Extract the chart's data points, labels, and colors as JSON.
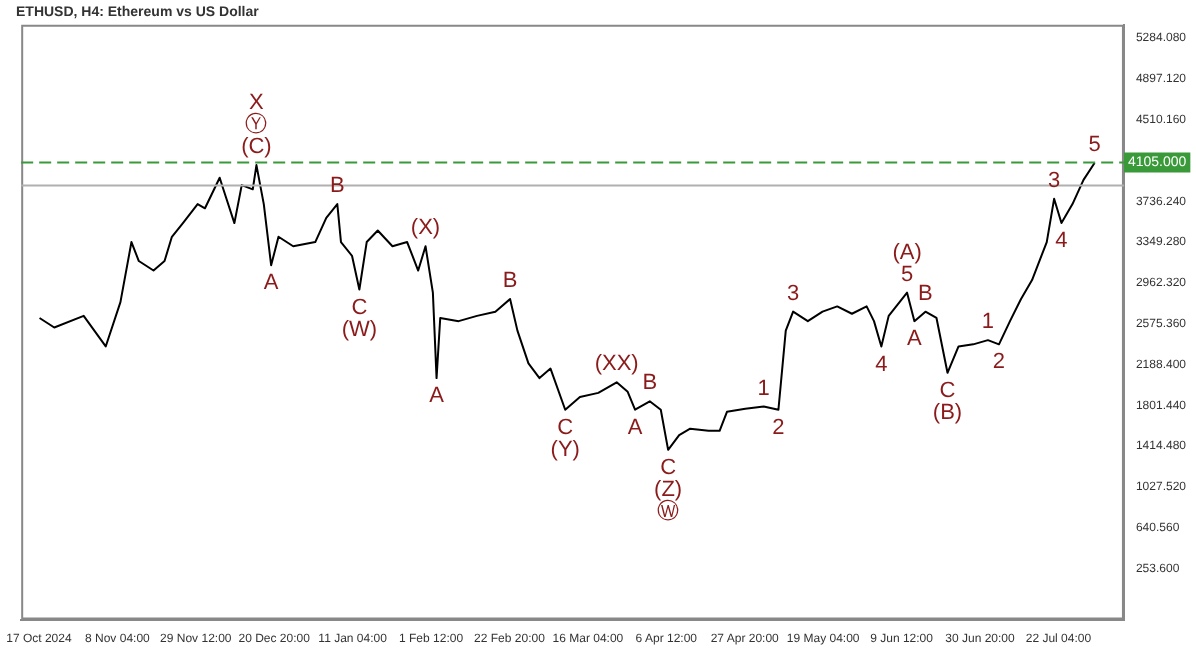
{
  "chart_data": {
    "type": "line",
    "title": "ETHUSD, H4: Ethereum vs US Dollar",
    "x": [
      "2024-10-18",
      "2024-10-22",
      "2024-10-30",
      "2024-11-05",
      "2024-11-09",
      "2024-11-12",
      "2024-11-14",
      "2024-11-18",
      "2024-11-21",
      "2024-11-23",
      "2024-11-26",
      "2024-11-30",
      "2024-12-02",
      "2024-12-06",
      "2024-12-07",
      "2024-12-10",
      "2024-12-12",
      "2024-12-15",
      "2024-12-16",
      "2024-12-18",
      "2024-12-20",
      "2024-12-22",
      "2024-12-26",
      "2025-01-01",
      "2025-01-04",
      "2025-01-07",
      "2025-01-08",
      "2025-01-11",
      "2025-01-13",
      "2025-01-15",
      "2025-01-18",
      "2025-01-22",
      "2025-01-26",
      "2025-01-29",
      "2025-01-31",
      "2025-02-02",
      "2025-02-03",
      "2025-02-04",
      "2025-02-09",
      "2025-02-14",
      "2025-02-19",
      "2025-02-23",
      "2025-02-25",
      "2025-02-28",
      "2025-03-03",
      "2025-03-06",
      "2025-03-10",
      "2025-03-14",
      "2025-03-19",
      "2025-03-24",
      "2025-03-27",
      "2025-03-29",
      "2025-04-02",
      "2025-04-05",
      "2025-04-07",
      "2025-04-10",
      "2025-04-13",
      "2025-04-18",
      "2025-04-21",
      "2025-04-23",
      "2025-04-28",
      "2025-05-03",
      "2025-05-07",
      "2025-05-09",
      "2025-05-11",
      "2025-05-15",
      "2025-05-19",
      "2025-05-23",
      "2025-05-27",
      "2025-05-31",
      "2025-06-02",
      "2025-06-04",
      "2025-06-06",
      "2025-06-11",
      "2025-06-13",
      "2025-06-16",
      "2025-06-19",
      "2025-06-22",
      "2025-06-25",
      "2025-06-29",
      "2025-07-03",
      "2025-07-06",
      "2025-07-09",
      "2025-07-12",
      "2025-07-15",
      "2025-07-19",
      "2025-07-21",
      "2025-07-23",
      "2025-07-26",
      "2025-07-29",
      "2025-08-01"
    ],
    "series": [
      {
        "color": "#000000",
        "values": [
          2630,
          2540,
          2650,
          2360,
          2780,
          3350,
          3170,
          3080,
          3170,
          3400,
          3530,
          3710,
          3670,
          3960,
          3850,
          3530,
          3890,
          3850,
          4080,
          3710,
          3130,
          3400,
          3310,
          3350,
          3580,
          3710,
          3350,
          3220,
          2900,
          3350,
          3460,
          3310,
          3350,
          3080,
          3310,
          2870,
          2060,
          2630,
          2600,
          2650,
          2690,
          2810,
          2510,
          2200,
          2060,
          2150,
          1760,
          1880,
          1920,
          2020,
          1930,
          1760,
          1840,
          1760,
          1380,
          1520,
          1580,
          1560,
          1560,
          1740,
          1770,
          1790,
          1760,
          2510,
          2690,
          2600,
          2690,
          2740,
          2670,
          2740,
          2600,
          2360,
          2650,
          2870,
          2600,
          2690,
          2630,
          2110,
          2360,
          2380,
          2420,
          2380,
          2600,
          2810,
          2990,
          3350,
          3760,
          3530,
          3710,
          3940,
          4100
        ]
      }
    ],
    "xlim": [
      "2024-10-13",
      "2025-08-09"
    ],
    "xticks": [
      {
        "value": "2024-10-17T20:00",
        "label": "17 Oct 2024"
      },
      {
        "value": "2024-11-08T04:00",
        "label": "8 Nov 04:00"
      },
      {
        "value": "2024-11-29T12:00",
        "label": "29 Nov 12:00"
      },
      {
        "value": "2024-12-20T20:00",
        "label": "20 Dec 20:00"
      },
      {
        "value": "2025-01-11T04:00",
        "label": "11 Jan 04:00"
      },
      {
        "value": "2025-02-01T12:00",
        "label": "1 Feb 12:00"
      },
      {
        "value": "2025-02-22T20:00",
        "label": "22 Feb 20:00"
      },
      {
        "value": "2025-03-16T04:00",
        "label": "16 Mar 04:00"
      },
      {
        "value": "2025-04-06T12:00",
        "label": "6 Apr 12:00"
      },
      {
        "value": "2025-04-27T20:00",
        "label": "27 Apr 20:00"
      },
      {
        "value": "2025-05-19T04:00",
        "label": "19 May 04:00"
      },
      {
        "value": "2025-06-09T12:00",
        "label": "9 Jun 12:00"
      },
      {
        "value": "2025-06-30T20:00",
        "label": "30 Jun 20:00"
      },
      {
        "value": "2025-07-22T04:00",
        "label": "22 Jul 04:00"
      }
    ],
    "ylim": [
      -230,
      5410
    ],
    "yticks": [
      {
        "value": 253.6,
        "label": "253.600"
      },
      {
        "value": 640.56,
        "label": "640.560"
      },
      {
        "value": 1027.52,
        "label": "1027.520"
      },
      {
        "value": 1414.48,
        "label": "1414.480"
      },
      {
        "value": 1801.44,
        "label": "1801.440"
      },
      {
        "value": 2188.4,
        "label": "2188.400"
      },
      {
        "value": 2575.36,
        "label": "2575.360"
      },
      {
        "value": 2962.32,
        "label": "2962.320"
      },
      {
        "value": 3349.28,
        "label": "3349.280"
      },
      {
        "value": 3736.24,
        "label": "3736.240"
      },
      {
        "value": 4510.16,
        "label": "4510.160"
      },
      {
        "value": 4897.12,
        "label": "4897.120"
      },
      {
        "value": 5284.08,
        "label": "5284.080"
      }
    ],
    "ref_lines": [
      {
        "axis": "y",
        "value": 4105,
        "label": "4105.000",
        "color": "#3a9a3a",
        "line_style": "dashed"
      },
      {
        "axis": "y",
        "value": 3887,
        "color": "#b0b0b0",
        "line_style": "solid"
      }
    ],
    "annotations": [
      {
        "text": "(C)",
        "x": "2024-12-16",
        "y": 4080
      },
      {
        "text": "Ⓨ",
        "x": "2024-12-16",
        "y": 4080
      },
      {
        "text": "X",
        "x": "2024-12-16",
        "y": 4080
      },
      {
        "text": "A",
        "x": "2024-12-20",
        "y": 3130
      },
      {
        "text": "B",
        "x": "2025-01-07",
        "y": 3710
      },
      {
        "text": "C",
        "x": "2025-01-13",
        "y": 2900
      },
      {
        "text": "(W)",
        "x": "2025-01-13",
        "y": 2900
      },
      {
        "text": "(X)",
        "x": "2025-01-31",
        "y": 3310
      },
      {
        "text": "A",
        "x": "2025-02-03",
        "y": 2060
      },
      {
        "text": "B",
        "x": "2025-02-23",
        "y": 2810
      },
      {
        "text": "C",
        "x": "2025-03-10",
        "y": 1760
      },
      {
        "text": "(Y)",
        "x": "2025-03-10",
        "y": 1760
      },
      {
        "text": "(XX)",
        "x": "2025-03-24",
        "y": 2020
      },
      {
        "text": "A",
        "x": "2025-03-29",
        "y": 1760
      },
      {
        "text": "B",
        "x": "2025-04-02",
        "y": 1840
      },
      {
        "text": "C",
        "x": "2025-04-07",
        "y": 1380
      },
      {
        "text": "(Z)",
        "x": "2025-04-07",
        "y": 1380
      },
      {
        "text": "Ⓦ",
        "x": "2025-04-07",
        "y": 1380
      },
      {
        "text": "1",
        "x": "2025-05-03",
        "y": 1790
      },
      {
        "text": "2",
        "x": "2025-05-07",
        "y": 1760
      },
      {
        "text": "3",
        "x": "2025-05-11",
        "y": 2690
      },
      {
        "text": "4",
        "x": "2025-06-04",
        "y": 2360
      },
      {
        "text": "5",
        "x": "2025-06-11",
        "y": 2870
      },
      {
        "text": "(A)",
        "x": "2025-06-11",
        "y": 2870
      },
      {
        "text": "A",
        "x": "2025-06-13",
        "y": 2600
      },
      {
        "text": "B",
        "x": "2025-06-16",
        "y": 2690
      },
      {
        "text": "C",
        "x": "2025-06-22",
        "y": 2110
      },
      {
        "text": "(B)",
        "x": "2025-06-22",
        "y": 2110
      },
      {
        "text": "1",
        "x": "2025-07-03",
        "y": 2420
      },
      {
        "text": "2",
        "x": "2025-07-06",
        "y": 2380
      },
      {
        "text": "3",
        "x": "2025-07-21",
        "y": 3760
      },
      {
        "text": "4",
        "x": "2025-07-23",
        "y": 3530
      },
      {
        "text": "5",
        "x": "2025-08-01",
        "y": 4100
      }
    ],
    "grid": false,
    "legend": false,
    "line_style": "solid",
    "marker": "none"
  }
}
